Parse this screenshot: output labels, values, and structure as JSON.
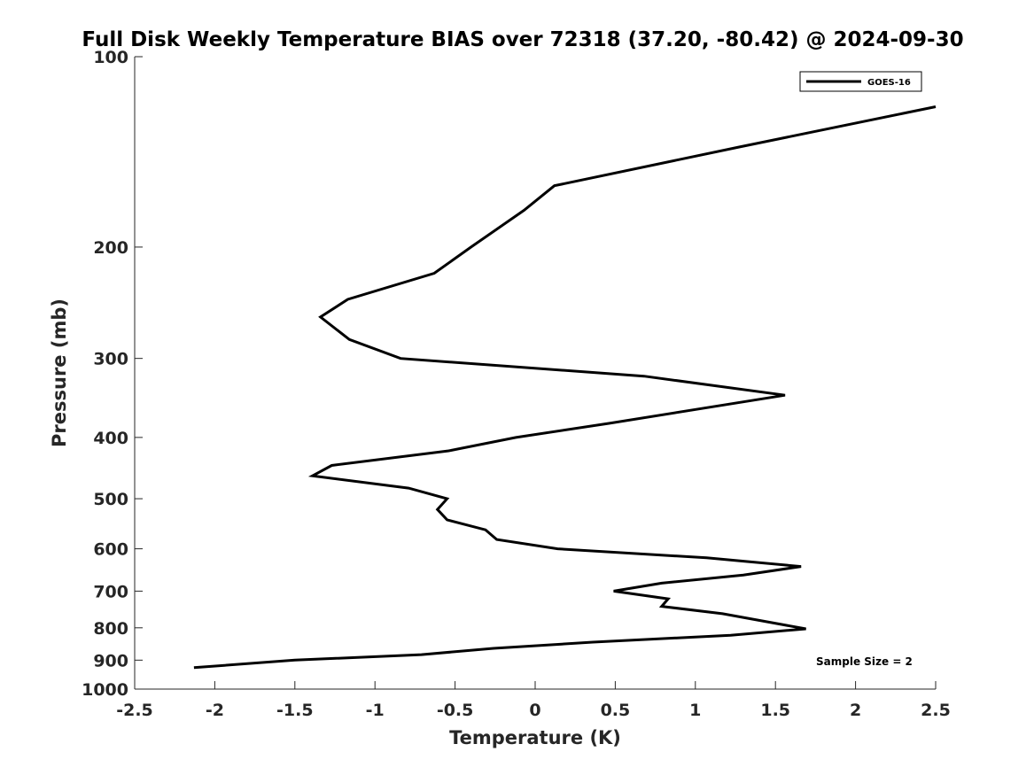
{
  "chart_data": {
    "type": "line",
    "title": "Full Disk Weekly Temperature BIAS over 72318 (37.20, -80.42) @ 2024-09-30",
    "xlabel": "Temperature (K)",
    "ylabel": "Pressure (mb)",
    "xlim": [
      -2.5,
      2.5
    ],
    "ylim": [
      100,
      1000
    ],
    "y_scale": "log",
    "y_reversed": true,
    "grid": false,
    "legend_position": "top-right",
    "xticks": [
      -2.5,
      -2,
      -1.5,
      -1,
      -0.5,
      0,
      0.5,
      1,
      1.5,
      2,
      2.5
    ],
    "xtick_labels": [
      "-2.5",
      "-2",
      "-1.5",
      "-1",
      "-0.5",
      "0",
      "0.5",
      "1",
      "1.5",
      "2",
      "2.5"
    ],
    "yticks": [
      100,
      200,
      300,
      400,
      500,
      600,
      700,
      800,
      900,
      1000
    ],
    "ytick_labels": [
      "100",
      "200",
      "300",
      "400",
      "500",
      "600",
      "700",
      "800",
      "900",
      "1000"
    ],
    "series": [
      {
        "name": "GOES-16",
        "color": "#000000",
        "points": [
          [
            2.5,
            120
          ],
          [
            1.27,
            139
          ],
          [
            0.12,
            160
          ],
          [
            -0.07,
            175
          ],
          [
            -0.4,
            200
          ],
          [
            -0.63,
            220
          ],
          [
            -1.17,
            242
          ],
          [
            -1.34,
            258
          ],
          [
            -1.16,
            280
          ],
          [
            -0.84,
            300
          ],
          [
            0.68,
            320
          ],
          [
            1.56,
            343
          ],
          [
            0.46,
            380
          ],
          [
            -0.12,
            400
          ],
          [
            -0.54,
            420
          ],
          [
            -1.27,
            443
          ],
          [
            -1.39,
            460
          ],
          [
            -0.79,
            481
          ],
          [
            -0.55,
            500
          ],
          [
            -0.61,
            520
          ],
          [
            -0.55,
            540
          ],
          [
            -0.31,
            560
          ],
          [
            -0.24,
            580
          ],
          [
            0.14,
            600
          ],
          [
            1.07,
            620
          ],
          [
            1.66,
            640
          ],
          [
            1.3,
            660
          ],
          [
            0.79,
            680
          ],
          [
            0.49,
            700
          ],
          [
            0.83,
            720
          ],
          [
            0.79,
            740
          ],
          [
            1.17,
            760
          ],
          [
            1.69,
            803
          ],
          [
            1.22,
            822
          ],
          [
            0.36,
            843
          ],
          [
            -0.26,
            862
          ],
          [
            -0.71,
            882
          ],
          [
            -1.5,
            900
          ],
          [
            -2.13,
            925
          ]
        ]
      }
    ],
    "annotations": [
      "Sample Size = 2"
    ]
  }
}
